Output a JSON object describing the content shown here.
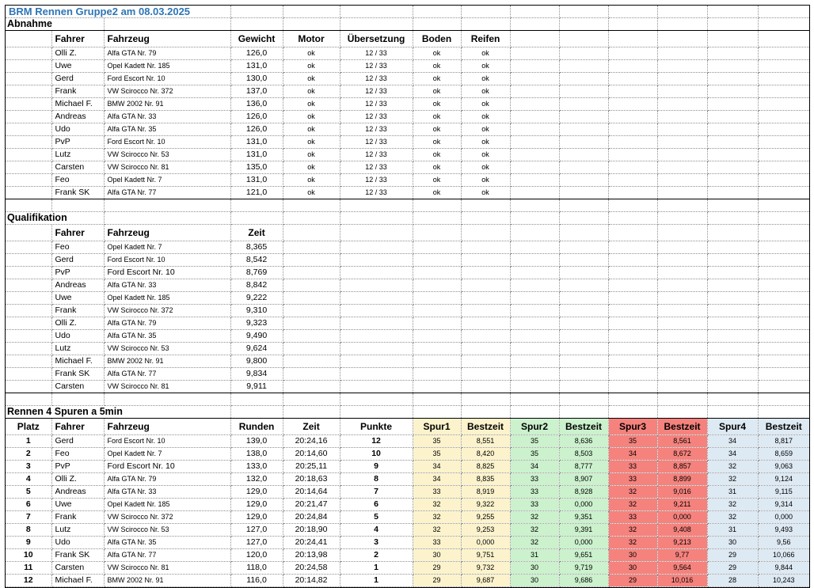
{
  "title": "BRM Rennen Gruppe2 am 08.03.2025",
  "colors": {
    "title_text": "#2E75B6",
    "spur1_bg": "#FCF3CC",
    "spur2_bg": "#CBF1CD",
    "spur3_bg": "#F5827D",
    "spur4_bg": "#DDE9F3"
  },
  "sections": {
    "abnahme": {
      "label": "Abnahme",
      "headers": [
        "Fahrer",
        "Fahrzeug",
        "Gewicht",
        "Motor",
        "Übersetzung",
        "Boden",
        "Reifen"
      ],
      "rows": [
        [
          "Olli Z.",
          "Alfa GTA Nr. 79",
          "126,0",
          "ok",
          "12 / 33",
          "ok",
          "ok"
        ],
        [
          "Uwe",
          "Opel Kadett Nr. 185",
          "131,0",
          "ok",
          "12 / 33",
          "ok",
          "ok"
        ],
        [
          "Gerd",
          "Ford Escort Nr. 10",
          "130,0",
          "ok",
          "12 / 33",
          "ok",
          "ok"
        ],
        [
          "Frank",
          "VW Scirocco Nr. 372",
          "137,0",
          "ok",
          "12 / 33",
          "ok",
          "ok"
        ],
        [
          "Michael F.",
          "BMW 2002 Nr. 91",
          "136,0",
          "ok",
          "12 / 33",
          "ok",
          "ok"
        ],
        [
          "Andreas",
          "Alfa GTA Nr. 33",
          "126,0",
          "ok",
          "12 / 33",
          "ok",
          "ok"
        ],
        [
          "Udo",
          "Alfa GTA Nr. 35",
          "126,0",
          "ok",
          "12 / 33",
          "ok",
          "ok"
        ],
        [
          "PvP",
          "Ford Escort Nr. 10",
          "131,0",
          "ok",
          "12 / 33",
          "ok",
          "ok"
        ],
        [
          "Lutz",
          "VW Scirocco Nr. 53",
          "131,0",
          "ok",
          "12 / 33",
          "ok",
          "ok"
        ],
        [
          "Carsten",
          "VW Scirocco Nr. 81",
          "135,0",
          "ok",
          "12 / 33",
          "ok",
          "ok"
        ],
        [
          "Feo",
          "Opel Kadett Nr. 7",
          "131,0",
          "ok",
          "12 / 33",
          "ok",
          "ok"
        ],
        [
          "Frank SK",
          "Alfa GTA Nr. 77",
          "121,0",
          "ok",
          "12 / 33",
          "ok",
          "ok"
        ]
      ]
    },
    "qualifikation": {
      "label": "Qualifikation",
      "headers": [
        "Fahrer",
        "Fahrzeug",
        "Zeit"
      ],
      "rows": [
        [
          "Feo",
          "Opel Kadett Nr. 7",
          "8,365"
        ],
        [
          "Gerd",
          "Ford Escort Nr. 10",
          "8,542"
        ],
        [
          "PvP",
          "Ford Escort Nr. 10",
          "8,769"
        ],
        [
          "Andreas",
          "Alfa GTA Nr. 33",
          "8,842"
        ],
        [
          "Uwe",
          "Opel Kadett Nr. 185",
          "9,222"
        ],
        [
          "Frank",
          "VW Scirocco Nr. 372",
          "9,310"
        ],
        [
          "Olli Z.",
          "Alfa GTA Nr. 79",
          "9,323"
        ],
        [
          "Udo",
          "Alfa GTA Nr. 35",
          "9,490"
        ],
        [
          "Lutz",
          "VW Scirocco Nr. 53",
          "9,624"
        ],
        [
          "Michael F.",
          "BMW 2002 Nr. 91",
          "9,800"
        ],
        [
          "Frank SK",
          "Alfa GTA Nr. 77",
          "9,834"
        ],
        [
          "Carsten",
          "VW Scirocco Nr. 81",
          "9,911"
        ]
      ]
    },
    "rennen": {
      "label": "Rennen 4 Spuren a 5min",
      "headers": [
        "Platz",
        "Fahrer",
        "Fahrzeug",
        "Runden",
        "Zeit",
        "Punkte",
        "Spur1",
        "Bestzeit",
        "Spur2",
        "Bestzeit",
        "Spur3",
        "Bestzeit",
        "Spur4",
        "Bestzeit"
      ],
      "rows": [
        [
          "1",
          "Gerd",
          "Ford Escort Nr. 10",
          "139,0",
          "20:24,16",
          "12",
          "35",
          "8,551",
          "35",
          "8,636",
          "35",
          "8,561",
          "34",
          "8,817"
        ],
        [
          "2",
          "Feo",
          "Opel Kadett Nr. 7",
          "138,0",
          "20:14,60",
          "10",
          "35",
          "8,420",
          "35",
          "8,503",
          "34",
          "8,672",
          "34",
          "8,659"
        ],
        [
          "3",
          "PvP",
          "Ford Escort Nr. 10",
          "133,0",
          "20:25,11",
          "9",
          "34",
          "8,825",
          "34",
          "8,777",
          "33",
          "8,857",
          "32",
          "9,063"
        ],
        [
          "4",
          "Olli Z.",
          "Alfa GTA Nr. 79",
          "132,0",
          "20:18,63",
          "8",
          "34",
          "8,835",
          "33",
          "8,907",
          "33",
          "8,899",
          "32",
          "9,124"
        ],
        [
          "5",
          "Andreas",
          "Alfa GTA Nr. 33",
          "129,0",
          "20:14,64",
          "7",
          "33",
          "8,919",
          "33",
          "8,928",
          "32",
          "9,016",
          "31",
          "9,115"
        ],
        [
          "6",
          "Uwe",
          "Opel Kadett Nr. 185",
          "129,0",
          "20:21,47",
          "6",
          "32",
          "9,322",
          "33",
          "0,000",
          "32",
          "9,211",
          "32",
          "9,314"
        ],
        [
          "7",
          "Frank",
          "VW Scirocco Nr. 372",
          "129,0",
          "20:24,84",
          "5",
          "32",
          "9,255",
          "32",
          "9,351",
          "33",
          "0,000",
          "32",
          "0,000"
        ],
        [
          "8",
          "Lutz",
          "VW Scirocco Nr. 53",
          "127,0",
          "20:18,90",
          "4",
          "32",
          "9,253",
          "32",
          "9,391",
          "32",
          "9,408",
          "31",
          "9,493"
        ],
        [
          "9",
          "Udo",
          "Alfa GTA Nr. 35",
          "127,0",
          "20:24,41",
          "3",
          "33",
          "0,000",
          "32",
          "0,000",
          "32",
          "9,213",
          "30",
          "9,56"
        ],
        [
          "10",
          "Frank SK",
          "Alfa GTA Nr. 77",
          "120,0",
          "20:13,98",
          "2",
          "30",
          "9,751",
          "31",
          "9,651",
          "30",
          "9,77",
          "29",
          "10,066"
        ],
        [
          "11",
          "Carsten",
          "VW Scirocco Nr. 81",
          "118,0",
          "20:24,58",
          "1",
          "29",
          "9,732",
          "30",
          "9,719",
          "30",
          "9,564",
          "29",
          "9,844"
        ],
        [
          "12",
          "Michael F.",
          "BMW 2002 Nr. 91",
          "116,0",
          "20:14,82",
          "1",
          "29",
          "9,687",
          "30",
          "9,686",
          "29",
          "10,016",
          "28",
          "10,243"
        ]
      ]
    }
  }
}
